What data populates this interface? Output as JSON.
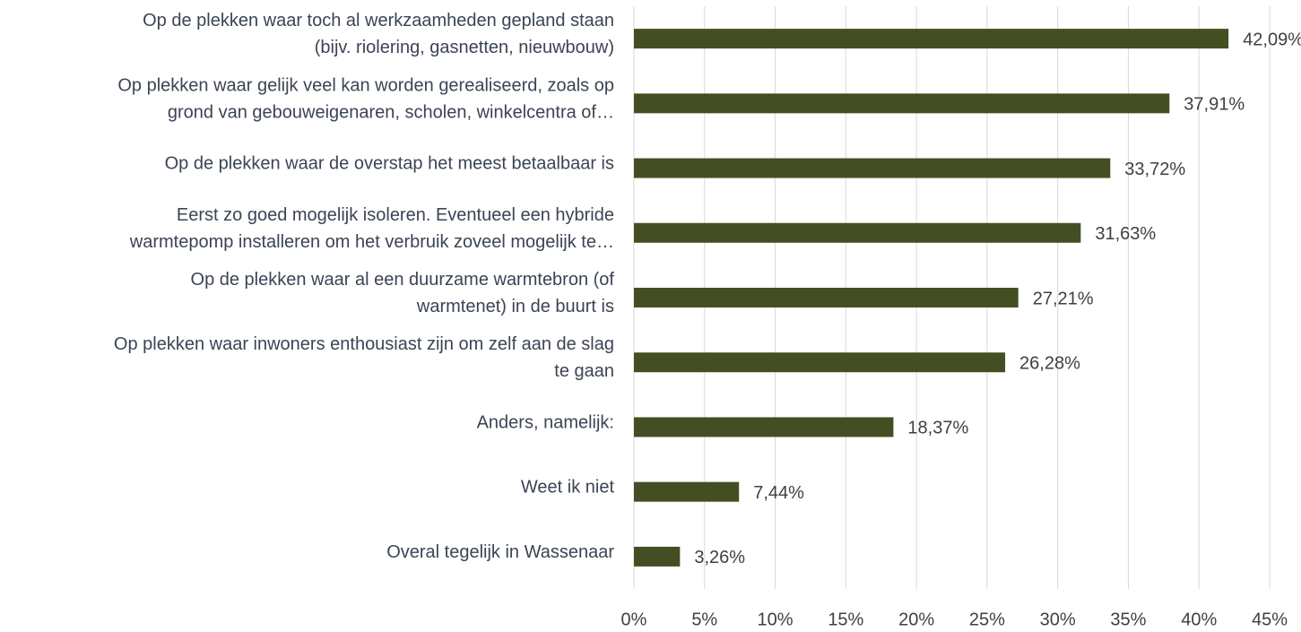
{
  "chart_data": {
    "type": "bar",
    "orientation": "horizontal",
    "categories": [
      [
        "Op de plekken waar toch al werkzaamheden gepland staan",
        "(bijv. riolering, gasnetten, nieuwbouw)"
      ],
      [
        "Op plekken waar gelijk veel kan worden gerealiseerd, zoals op",
        "grond van gebouweigenaren, scholen, winkelcentra of…"
      ],
      [
        "Op de plekken waar de overstap het meest betaalbaar is"
      ],
      [
        "Eerst zo goed mogelijk isoleren. Eventueel een hybride",
        "warmtepomp installeren om het verbruik zoveel mogelijk te…"
      ],
      [
        "Op de plekken waar al een duurzame warmtebron (of",
        "warmtenet) in de buurt is"
      ],
      [
        "Op plekken waar inwoners enthousiast zijn om zelf aan de slag",
        "te gaan"
      ],
      [
        "Anders, namelijk:"
      ],
      [
        "Weet ik niet"
      ],
      [
        "Overal tegelijk in Wassenaar"
      ]
    ],
    "values": [
      42.09,
      37.91,
      33.72,
      31.63,
      27.21,
      26.28,
      18.37,
      7.44,
      3.26
    ],
    "value_labels": [
      "42,09%",
      "37,91%",
      "33,72%",
      "31,63%",
      "27,21%",
      "26,28%",
      "18,37%",
      "7,44%",
      "3,26%"
    ],
    "color": "#434f22",
    "xlim": [
      0,
      45
    ],
    "xticks": [
      {
        "value": 0,
        "label": "0%"
      },
      {
        "value": 5,
        "label": "5%"
      },
      {
        "value": 10,
        "label": "10%"
      },
      {
        "value": 15,
        "label": "15%"
      },
      {
        "value": 20,
        "label": "20%"
      },
      {
        "value": 25,
        "label": "25%"
      },
      {
        "value": 30,
        "label": "30%"
      },
      {
        "value": 35,
        "label": "35%"
      },
      {
        "value": 40,
        "label": "40%"
      },
      {
        "value": 45,
        "label": "45%"
      }
    ],
    "grid": true
  }
}
